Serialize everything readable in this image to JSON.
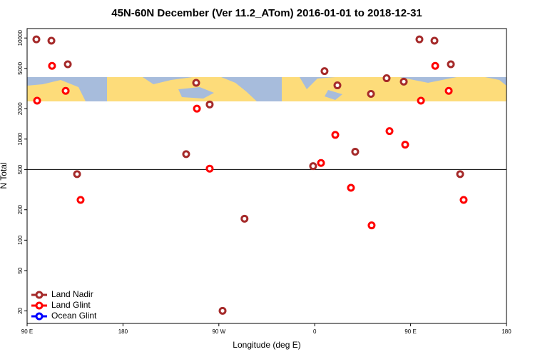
{
  "chart_data": {
    "type": "scatter",
    "title": "45N-60N December (Ver 11.2_ATom)   2016-01-01 to 2018-12-31",
    "xlabel": "Longitude (deg E)",
    "ylabel": "N Total",
    "xlim": [
      90,
      540
    ],
    "xticks": [
      {
        "value": 90,
        "label": "90 E"
      },
      180,
      {
        "value": 270,
        "label": "90 W"
      },
      {
        "value": 360,
        "label": "0"
      },
      {
        "value": 450,
        "label": "90 E"
      },
      {
        "value": 540,
        "label": "180"
      }
    ],
    "ylim": [
      15,
      12400
    ],
    "log_y": true,
    "yticks": [
      20,
      50,
      100,
      200,
      500,
      1000,
      2000,
      5000,
      10000
    ],
    "hline": 500,
    "legend": "bottom left",
    "series": [
      {
        "name": "Land Nadir",
        "color": "#a52a2a",
        "x": [
          98.7,
          112.8,
          128.2,
          248.7,
          261.4,
          239.3,
          136.9,
          294.1,
          273.5,
          369.2,
          381.3,
          358.5,
          398.0,
          412.8,
          427.5,
          443.6,
          458.3,
          472.4,
          487.8,
          496.5
        ],
        "values": [
          9700,
          9400,
          5500,
          3600,
          2200,
          710,
          450,
          163,
          20,
          4700,
          3400,
          540,
          750,
          2800,
          4000,
          3700,
          9700,
          9400,
          5500,
          450
        ]
      },
      {
        "name": "Land Glint",
        "color": "#ff0000",
        "x": [
          99.4,
          113.4,
          126.2,
          140.2,
          249.4,
          261.4,
          365.9,
          379.3,
          394.0,
          413.4,
          430.2,
          444.9,
          459.7,
          473.1,
          485.8,
          499.8
        ],
        "values": [
          2400,
          5300,
          3000,
          250,
          2000,
          510,
          580,
          1100,
          330,
          140,
          1200,
          880,
          2400,
          5300,
          3000,
          250
        ]
      },
      {
        "name": "Ocean Glint",
        "color": "#0000ff",
        "x": [],
        "values": []
      }
    ]
  }
}
